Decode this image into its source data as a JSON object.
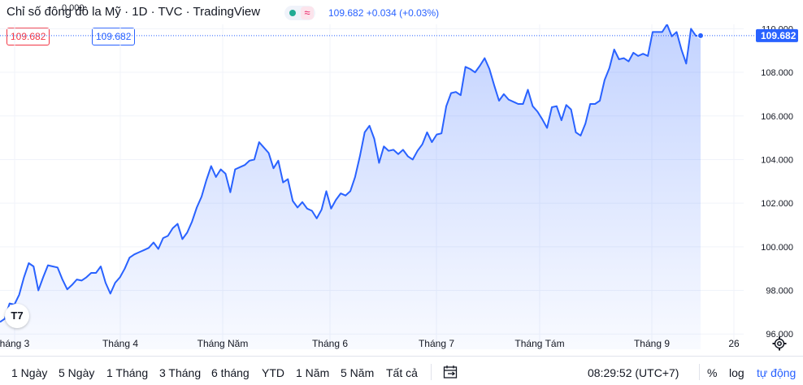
{
  "header": {
    "title": "Chỉ số đông đô la Mỹ · 1D · TVC · TradingView",
    "last_price": "109.682",
    "change": "+0.034 (+0.03%)",
    "bid": "109.682",
    "spread": "0.000",
    "ask": "109.682"
  },
  "colors": {
    "line": "#2962ff",
    "fill": "#2962ff",
    "bid": "#f23645",
    "accent": "#2962ff"
  },
  "logo_text": "T7",
  "chart_data": {
    "type": "area",
    "ylim": [
      95.3,
      110.2
    ],
    "y_ticks": [
      "110.000",
      "108.000",
      "106.000",
      "104.000",
      "102.000",
      "100.000",
      "98.000",
      "96.000"
    ],
    "x_ticks": [
      "háng 3",
      "Tháng 4",
      "Tháng Năm",
      "Tháng 6",
      "Tháng 7",
      "Tháng Tám",
      "Tháng 9",
      "26"
    ],
    "last_value_label": "109.682",
    "values": [
      96.55,
      96.7,
      97.4,
      97.35,
      97.8,
      98.6,
      99.25,
      99.1,
      98.0,
      98.6,
      99.15,
      99.1,
      99.05,
      98.5,
      98.05,
      98.25,
      98.5,
      98.45,
      98.6,
      98.8,
      98.8,
      99.1,
      98.35,
      97.85,
      98.35,
      98.6,
      99.0,
      99.5,
      99.65,
      99.75,
      99.85,
      99.95,
      100.2,
      99.9,
      100.4,
      100.5,
      100.85,
      101.05,
      100.35,
      100.65,
      101.15,
      101.8,
      102.3,
      103.05,
      103.7,
      103.2,
      103.55,
      103.35,
      102.5,
      103.55,
      103.65,
      103.75,
      103.95,
      104.0,
      104.8,
      104.55,
      104.3,
      103.6,
      103.95,
      102.95,
      103.1,
      102.1,
      101.8,
      102.05,
      101.75,
      101.65,
      101.3,
      101.7,
      102.55,
      101.75,
      102.15,
      102.45,
      102.35,
      102.55,
      103.2,
      104.15,
      105.25,
      105.55,
      104.95,
      103.85,
      104.6,
      104.4,
      104.45,
      104.25,
      104.45,
      104.15,
      104.0,
      104.4,
      104.7,
      105.25,
      104.8,
      105.15,
      105.2,
      106.45,
      107.05,
      107.1,
      106.95,
      108.25,
      108.15,
      108.0,
      108.3,
      108.65,
      108.15,
      107.4,
      106.7,
      107.0,
      106.75,
      106.65,
      106.55,
      106.55,
      107.2,
      106.45,
      106.2,
      105.85,
      105.45,
      106.4,
      106.45,
      105.8,
      106.5,
      106.3,
      105.25,
      105.1,
      105.65,
      106.55,
      106.55,
      106.7,
      107.65,
      108.2,
      109.05,
      108.6,
      108.65,
      108.5,
      108.9,
      108.75,
      108.85,
      108.75,
      109.85,
      109.85,
      109.85,
      110.2,
      109.65,
      109.85,
      109.05,
      108.4,
      110.0,
      109.68,
      109.682
    ]
  },
  "bottom_bar": {
    "ranges": [
      "1 Ngày",
      "5 Ngày",
      "1 Tháng",
      "3 Tháng",
      "6 tháng",
      "YTD",
      "1 Năm",
      "5 Năm",
      "Tất cả"
    ],
    "clock": "08:29:52 (UTC+7)",
    "percent": "%",
    "log": "log",
    "auto": "tự động"
  }
}
